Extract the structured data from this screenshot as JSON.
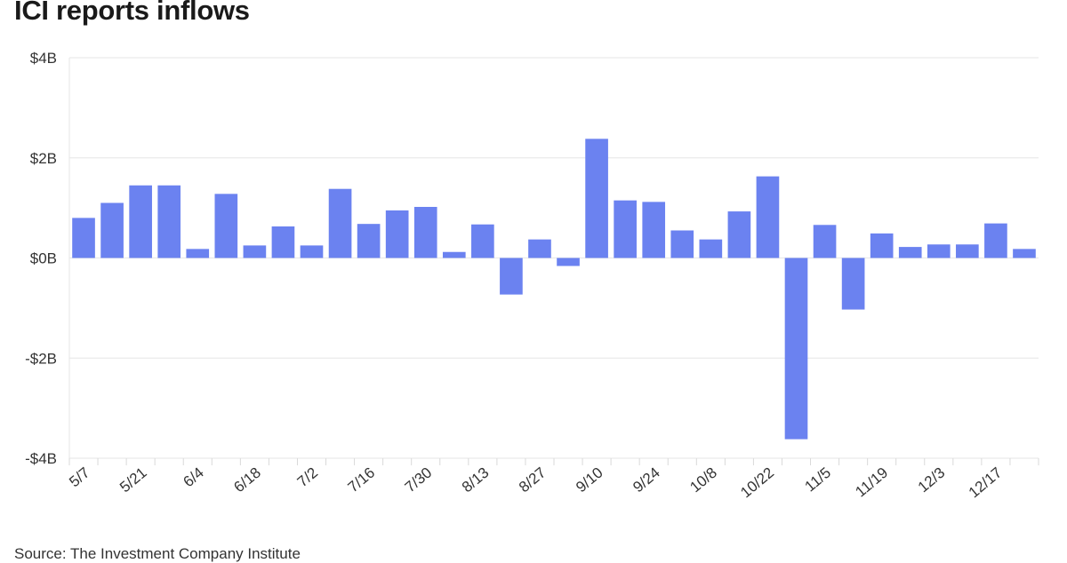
{
  "chart_data": {
    "type": "bar",
    "title": "ICI reports inflows",
    "xlabel": "",
    "ylabel": "",
    "ylim": [
      -4,
      4
    ],
    "y_ticks": [
      {
        "value": 4,
        "label": "$4B"
      },
      {
        "value": 2,
        "label": "$2B"
      },
      {
        "value": 0,
        "label": "$0B"
      },
      {
        "value": -2,
        "label": "-$2B"
      },
      {
        "value": -4,
        "label": "-$4B"
      }
    ],
    "categories": [
      "5/7",
      "5/14",
      "5/21",
      "5/28",
      "6/4",
      "6/11",
      "6/18",
      "6/25",
      "7/2",
      "7/9",
      "7/16",
      "7/23",
      "7/30",
      "8/6",
      "8/13",
      "8/20",
      "8/27",
      "9/3",
      "9/10",
      "9/17",
      "9/24",
      "10/1",
      "10/8",
      "10/15",
      "10/22",
      "10/29",
      "11/5",
      "11/12",
      "11/19",
      "11/26",
      "12/3",
      "12/10",
      "12/17",
      "12/24"
    ],
    "x_tick_labels": [
      "5/7",
      "5/21",
      "6/4",
      "6/18",
      "7/2",
      "7/16",
      "7/30",
      "8/13",
      "8/27",
      "9/10",
      "9/24",
      "10/8",
      "10/22",
      "11/5",
      "11/19",
      "12/3",
      "12/17"
    ],
    "values": [
      0.8,
      1.1,
      1.45,
      1.45,
      0.18,
      1.28,
      0.25,
      0.63,
      0.25,
      1.38,
      0.68,
      0.95,
      1.02,
      0.12,
      0.67,
      -0.73,
      0.37,
      -0.16,
      2.38,
      1.15,
      1.12,
      0.55,
      0.37,
      0.93,
      1.63,
      -3.62,
      0.66,
      -1.03,
      0.49,
      0.22,
      0.27,
      0.27,
      0.69,
      0.18
    ],
    "grid": true,
    "legend": "none",
    "bar_color": "#6b82f0"
  },
  "source": "Source: The Investment Company Institute"
}
